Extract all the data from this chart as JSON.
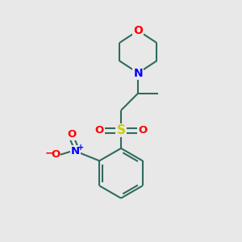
{
  "bg_color": "#e8e8e8",
  "bond_color": "#2f6b5e",
  "atom_colors": {
    "O": "#ff0000",
    "N": "#0000ff",
    "S": "#cccc00"
  },
  "bond_width": 1.5,
  "font_size": 9.5
}
